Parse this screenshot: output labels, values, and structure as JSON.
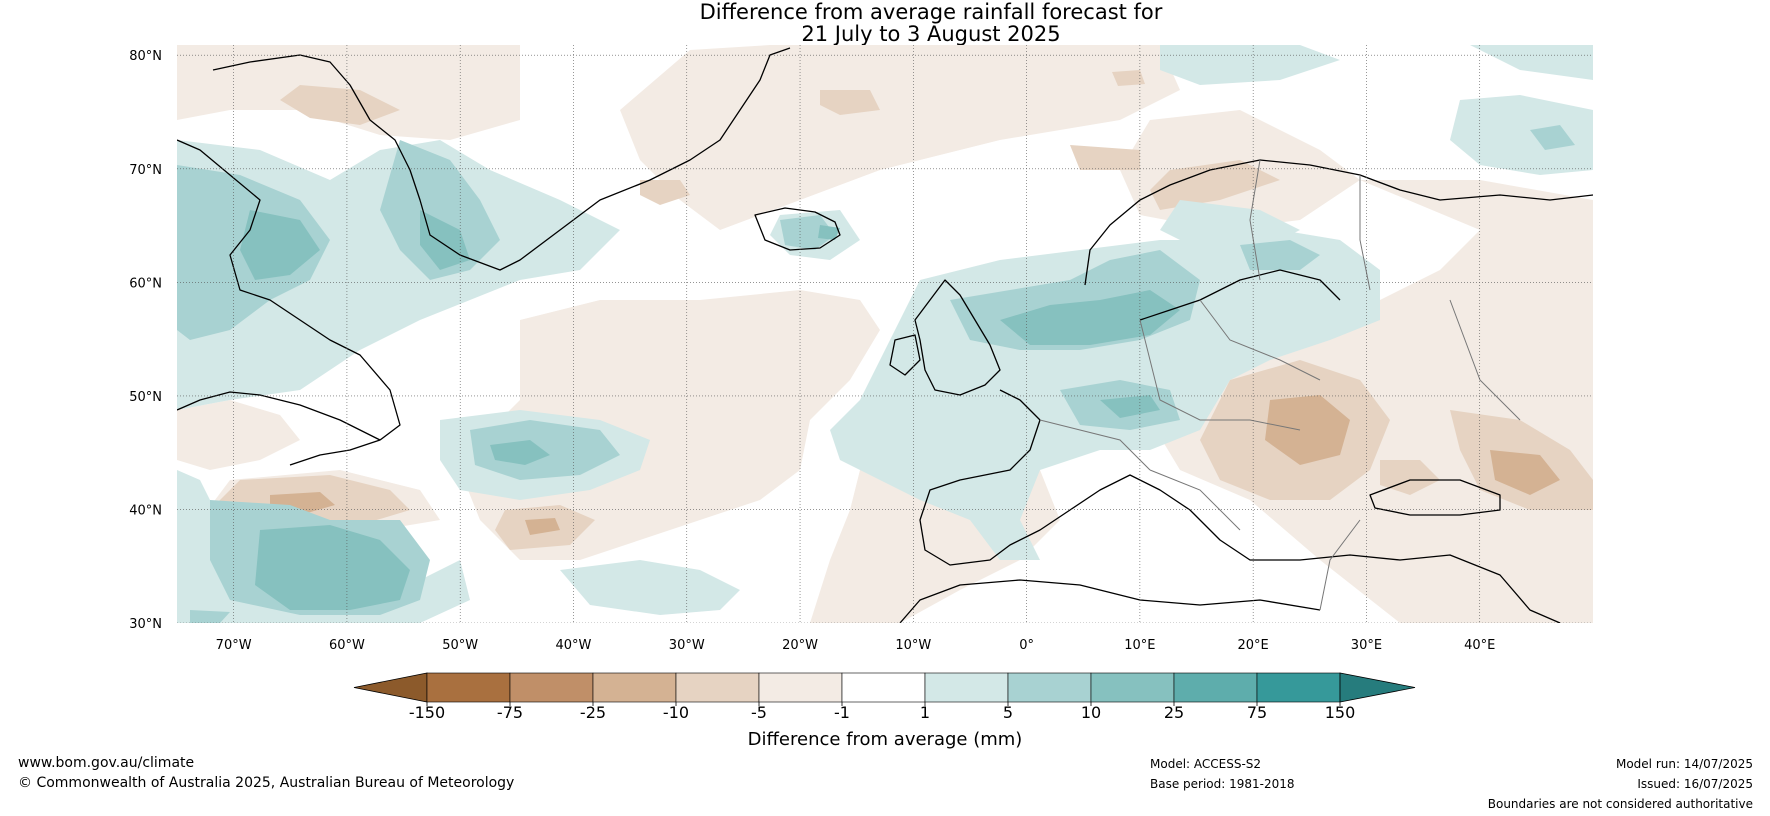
{
  "title": {
    "line1": "Difference from average rainfall forecast for",
    "line2": "21 July to 3 August 2025"
  },
  "map": {
    "lon_range": [
      -75,
      50
    ],
    "lat_range": [
      30,
      80.9
    ],
    "lat_ticks": [
      {
        "value": 80,
        "label": "80°N"
      },
      {
        "value": 70,
        "label": "70°N"
      },
      {
        "value": 60,
        "label": "60°N"
      },
      {
        "value": 50,
        "label": "50°N"
      },
      {
        "value": 40,
        "label": "40°N"
      },
      {
        "value": 30,
        "label": "30°N"
      }
    ],
    "lon_ticks": [
      {
        "value": -70,
        "label": "70°W"
      },
      {
        "value": -60,
        "label": "60°W"
      },
      {
        "value": -50,
        "label": "50°W"
      },
      {
        "value": -40,
        "label": "40°W"
      },
      {
        "value": -30,
        "label": "30°W"
      },
      {
        "value": -20,
        "label": "20°W"
      },
      {
        "value": -10,
        "label": "10°W"
      },
      {
        "value": 0,
        "label": "0°"
      },
      {
        "value": 10,
        "label": "10°E"
      },
      {
        "value": 20,
        "label": "20°E"
      },
      {
        "value": 30,
        "label": "30°E"
      },
      {
        "value": 40,
        "label": "40°E"
      }
    ],
    "gridlines": "dotted"
  },
  "colorbar": {
    "title": "Difference from average (mm)",
    "levels": [
      "-150",
      "-75",
      "-25",
      "-10",
      "-5",
      "-1",
      "1",
      "5",
      "10",
      "25",
      "75",
      "150"
    ],
    "colors": [
      "#8c5a2b",
      "#a9703f",
      "#c08f68",
      "#d4b293",
      "#e6d3c2",
      "#f3ebe4",
      "#ffffff",
      "#d3e8e7",
      "#a8d2d2",
      "#86c1bf",
      "#5eadac",
      "#36999a",
      "#267c7d"
    ]
  },
  "footer": {
    "website": "www.bom.gov.au/climate",
    "copyright": "© Commonwealth of Australia 2025, Australian Bureau of Meteorology",
    "model": "Model: ACCESS-S2",
    "base_period": "Base period: 1981-2018",
    "model_run": "Model run: 14/07/2025",
    "issued": "Issued: 16/07/2025",
    "disclaimer": "Boundaries are not considered authoritative"
  }
}
